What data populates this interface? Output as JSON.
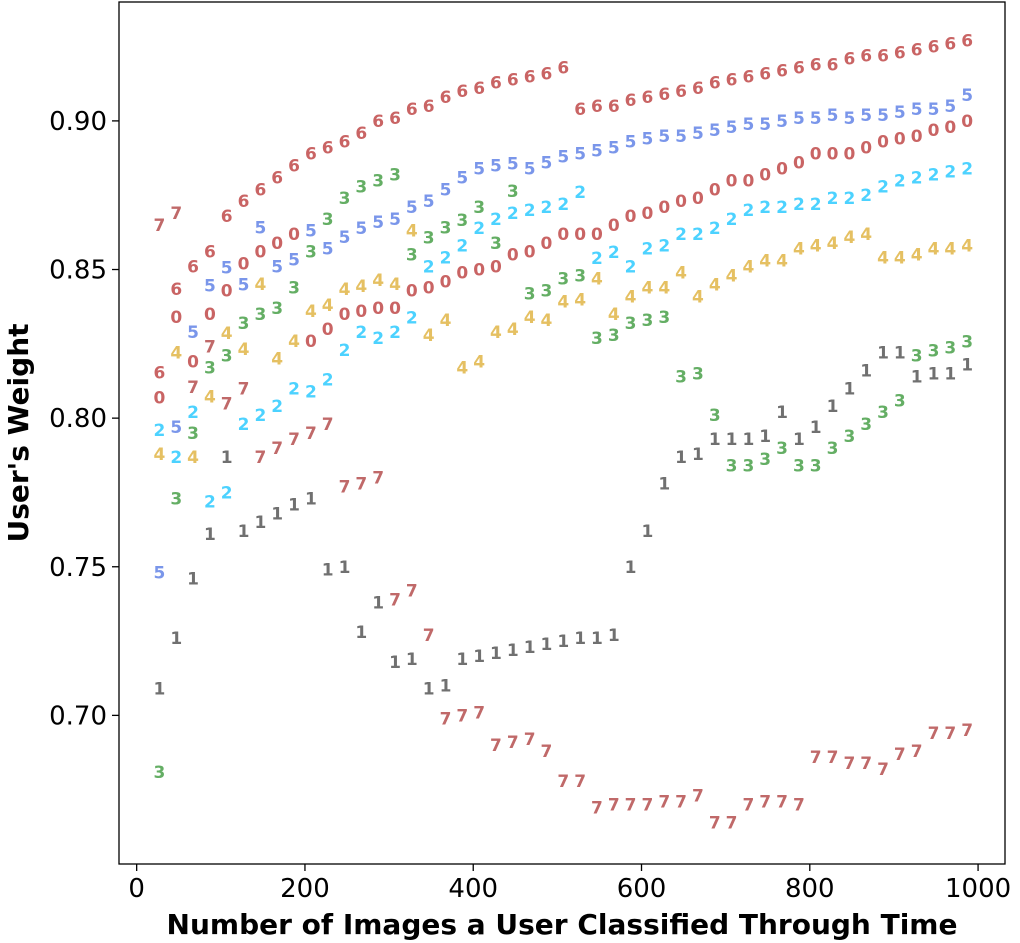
{
  "chart_data": {
    "type": "scatter",
    "marker_style": "text digits (series label drawn as marker)",
    "title": "",
    "xlabel": "Number of Images a User Classified Through Time",
    "ylabel": "User's Weight",
    "xlim": [
      -21,
      1032
    ],
    "ylim": [
      0.65,
      0.94
    ],
    "xticks": [
      0,
      200,
      400,
      600,
      800,
      1000
    ],
    "xtick_labels": [
      "0",
      "200",
      "400",
      "600",
      "800",
      "1000"
    ],
    "yticks": [
      0.7,
      0.75,
      0.8,
      0.85,
      0.9
    ],
    "ytick_labels": [
      "0.70",
      "0.75",
      "0.80",
      "0.85",
      "0.90"
    ],
    "grid": false,
    "x": [
      20,
      40,
      60,
      80,
      100,
      120,
      140,
      160,
      180,
      200,
      220,
      240,
      260,
      280,
      300,
      320,
      340,
      360,
      380,
      400,
      420,
      440,
      460,
      480,
      500,
      520,
      540,
      560,
      580,
      600,
      620,
      640,
      660,
      680,
      700,
      720,
      740,
      760,
      780,
      800,
      820,
      840,
      860,
      880,
      900,
      920,
      940,
      960,
      980
    ],
    "series": [
      {
        "label": "0",
        "color": "#b22222",
        "values": [
          0.807,
          0.834,
          0.819,
          0.835,
          0.843,
          0.852,
          0.856,
          0.859,
          0.862,
          0.826,
          0.83,
          0.835,
          0.836,
          0.837,
          0.837,
          0.843,
          0.844,
          0.846,
          0.849,
          0.85,
          0.851,
          0.855,
          0.856,
          0.859,
          0.862,
          0.862,
          0.862,
          0.865,
          0.868,
          0.869,
          0.871,
          0.873,
          0.874,
          0.877,
          0.88,
          0.88,
          0.882,
          0.884,
          0.886,
          0.889,
          0.889,
          0.889,
          0.891,
          0.893,
          0.894,
          0.895,
          0.897,
          0.898,
          0.9
        ]
      },
      {
        "label": "1",
        "color": "#333333",
        "values": [
          0.709,
          0.726,
          0.746,
          0.761,
          0.787,
          0.762,
          0.765,
          0.768,
          0.771,
          0.773,
          0.749,
          0.75,
          0.728,
          0.738,
          0.718,
          0.719,
          0.709,
          0.71,
          0.719,
          0.72,
          0.721,
          0.722,
          0.723,
          0.724,
          0.725,
          0.726,
          0.726,
          0.727,
          0.75,
          0.762,
          0.778,
          0.787,
          0.788,
          0.793,
          0.793,
          0.793,
          0.794,
          0.802,
          0.793,
          0.797,
          0.804,
          0.81,
          0.816,
          0.822,
          0.822,
          0.814,
          0.815,
          0.815,
          0.818
        ]
      },
      {
        "label": "2",
        "color": "#00bfff",
        "values": [
          0.796,
          0.787,
          0.802,
          0.772,
          0.775,
          0.798,
          0.801,
          0.804,
          0.81,
          0.809,
          0.813,
          0.823,
          0.829,
          0.834,
          0.836,
          0.841,
          0.851,
          0.854,
          0.858,
          0.864,
          0.867,
          0.869,
          0.87,
          0.871,
          0.872,
          0.876,
          0.861,
          0.863,
          0.851,
          0.857,
          0.858,
          0.862,
          0.862,
          0.864,
          0.867,
          0.87,
          0.871,
          0.871,
          0.872,
          0.872,
          0.874,
          0.874,
          0.875,
          0.878,
          0.88,
          0.881,
          0.882,
          0.883,
          0.884
        ]
      },
      {
        "label": "3",
        "color": "#228b22",
        "values": [
          0.681,
          0.773,
          0.795,
          0.817,
          0.821,
          0.832,
          0.835,
          0.837,
          0.844,
          0.856,
          0.867,
          0.874,
          0.878,
          0.88,
          0.882,
          0.855,
          0.857,
          0.857,
          0.863,
          0.864,
          0.866,
          0.866,
          0.842,
          0.843,
          0.847,
          0.848,
          0.827,
          0.828,
          0.832,
          0.833,
          0.834,
          0.814,
          0.815,
          0.801,
          0.784,
          0.784,
          0.79,
          0.79,
          0.784,
          0.784,
          0.79,
          0.794,
          0.798,
          0.802,
          0.806,
          0.814,
          0.819,
          0.82,
          0.822
        ]
      },
      {
        "label": "4",
        "color": "#daa520",
        "values": [
          0.795,
          0.822,
          0.794,
          0.811,
          0.825,
          0.827,
          0.838,
          0.82,
          0.826,
          0.829,
          0.831,
          0.833,
          0.834,
          0.836,
          0.838,
          0.846,
          0.828,
          0.833,
          0.817,
          0.819,
          0.829,
          0.83,
          0.834,
          0.84,
          0.843,
          0.847,
          0.847,
          0.835,
          0.841,
          0.844,
          0.844,
          0.849,
          0.841,
          0.845,
          0.848,
          0.851,
          0.853,
          0.853,
          0.857,
          0.858,
          0.859,
          0.861,
          0.862,
          0.854,
          0.854,
          0.855,
          0.857,
          0.857,
          0.858
        ]
      },
      {
        "label": "5",
        "color": "#4169e1",
        "values": [
          0.748,
          0.797,
          0.829,
          0.841,
          0.847,
          0.845,
          0.847,
          0.851,
          0.857,
          0.856,
          0.857,
          0.861,
          0.864,
          0.866,
          0.867,
          0.871,
          0.873,
          0.877,
          0.881,
          0.884,
          0.885,
          0.882,
          0.884,
          0.886,
          0.888,
          0.889,
          0.89,
          0.891,
          0.893,
          0.894,
          0.895,
          0.895,
          0.896,
          0.897,
          0.898,
          0.899,
          0.899,
          0.9,
          0.901,
          0.901,
          0.902,
          0.901,
          0.902,
          0.902,
          0.903,
          0.904,
          0.904,
          0.905,
          0.905
        ]
      },
      {
        "label": "6",
        "color": "#b22222",
        "values": [
          0.805,
          0.833,
          0.851,
          0.856,
          0.868,
          0.873,
          0.877,
          0.881,
          0.885,
          0.889,
          0.891,
          0.893,
          0.896,
          0.9,
          0.901,
          0.904,
          0.905,
          0.908,
          0.91,
          0.911,
          0.913,
          0.914,
          0.915,
          0.916,
          0.918,
          0.904,
          0.905,
          0.905,
          0.907,
          0.908,
          0.909,
          0.91,
          0.911,
          0.913,
          0.914,
          0.915,
          0.916,
          0.917,
          0.918,
          0.919,
          0.919,
          0.921,
          0.922,
          0.922,
          0.923,
          0.924,
          0.925,
          0.926,
          0.927
        ]
      },
      {
        "label": "7",
        "color": "#a52a2a",
        "values": [
          0.865,
          0.869,
          0.8,
          0.817,
          0.805,
          0.81,
          0.787,
          0.79,
          0.793,
          0.795,
          0.798,
          0.777,
          0.778,
          0.78,
          0.739,
          0.742,
          0.727,
          0.699,
          0.7,
          0.701,
          0.69,
          0.691,
          0.692,
          0.688,
          0.678,
          0.678,
          0.669,
          0.67,
          0.67,
          0.67,
          0.671,
          0.671,
          0.673,
          0.664,
          0.664,
          0.67,
          0.671,
          0.671,
          0.67,
          0.686,
          0.686,
          0.684,
          0.684,
          0.682,
          0.687,
          0.688,
          0.694,
          0.694,
          0.695
        ]
      }
    ]
  }
}
